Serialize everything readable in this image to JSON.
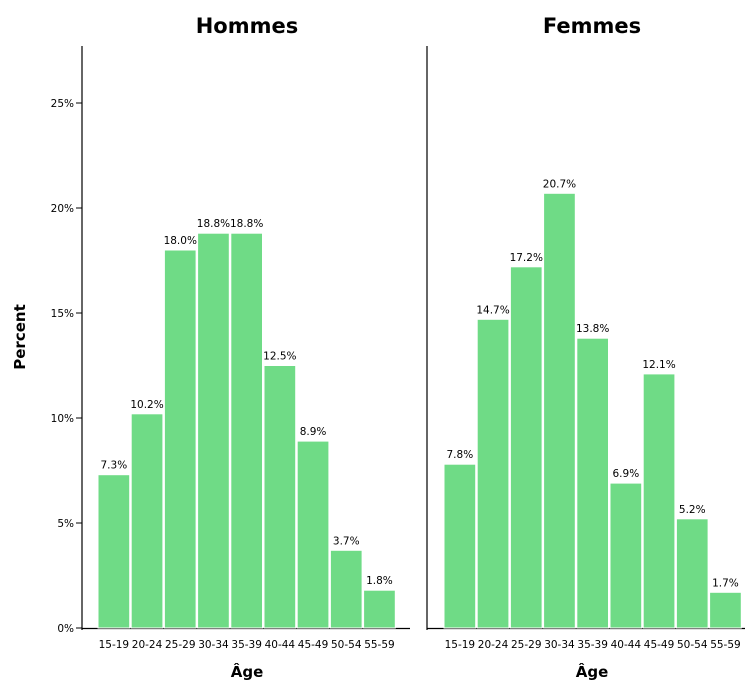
{
  "chart_data": {
    "type": "bar",
    "ylabel": "Percent",
    "ylim": [
      0,
      28
    ],
    "y_ticks": [
      "0%",
      "5%",
      "10%",
      "15%",
      "20%",
      "25%"
    ],
    "y_tick_values": [
      0,
      5,
      10,
      15,
      20,
      25
    ],
    "bar_color": "#6fdb86",
    "panels": [
      {
        "title": "Hommes",
        "xlabel": "Âge",
        "categories": [
          "15-19",
          "20-24",
          "25-29",
          "30-34",
          "35-39",
          "40-44",
          "45-49",
          "50-54",
          "55-59"
        ],
        "values": [
          7.3,
          10.2,
          18.0,
          18.8,
          18.8,
          12.5,
          8.9,
          3.7,
          1.8
        ],
        "value_labels": [
          "7.3%",
          "10.2%",
          "18.0%",
          "18.8%",
          "18.8%",
          "12.5%",
          "8.9%",
          "3.7%",
          "1.8%"
        ]
      },
      {
        "title": "Femmes",
        "xlabel": "Âge",
        "categories": [
          "15-19",
          "20-24",
          "25-29",
          "30-34",
          "35-39",
          "40-44",
          "45-49",
          "50-54",
          "55-59"
        ],
        "values": [
          7.8,
          14.7,
          17.2,
          20.7,
          13.8,
          6.9,
          12.1,
          5.2,
          1.7
        ],
        "value_labels": [
          "7.8%",
          "14.7%",
          "17.2%",
          "20.7%",
          "13.8%",
          "6.9%",
          "12.1%",
          "5.2%",
          "1.7%"
        ]
      }
    ]
  }
}
